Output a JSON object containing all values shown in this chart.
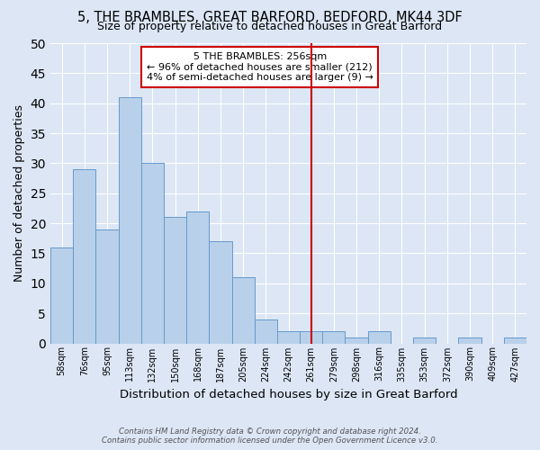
{
  "title": "5, THE BRAMBLES, GREAT BARFORD, BEDFORD, MK44 3DF",
  "subtitle": "Size of property relative to detached houses in Great Barford",
  "xlabel": "Distribution of detached houses by size in Great Barford",
  "ylabel": "Number of detached properties",
  "bin_labels": [
    "58sqm",
    "76sqm",
    "95sqm",
    "113sqm",
    "132sqm",
    "150sqm",
    "168sqm",
    "187sqm",
    "205sqm",
    "224sqm",
    "242sqm",
    "261sqm",
    "279sqm",
    "298sqm",
    "316sqm",
    "335sqm",
    "353sqm",
    "372sqm",
    "390sqm",
    "409sqm",
    "427sqm"
  ],
  "num_bins": 21,
  "bar_values": [
    16,
    29,
    19,
    41,
    30,
    21,
    22,
    17,
    11,
    4,
    2,
    2,
    2,
    1,
    2,
    0,
    1,
    0,
    1,
    0,
    1
  ],
  "bar_color": "#b8d0ea",
  "bar_edge_color": "#6699cc",
  "vline_x": 11.5,
  "vline_color": "#cc0000",
  "annotation_line1": "5 THE BRAMBLES: 256sqm",
  "annotation_line2": "← 96% of detached houses are smaller (212)",
  "annotation_line3": "4% of semi-detached houses are larger (9) →",
  "ylim": [
    0,
    50
  ],
  "yticks": [
    0,
    5,
    10,
    15,
    20,
    25,
    30,
    35,
    40,
    45,
    50
  ],
  "background_color": "#dce6f5",
  "plot_bg_color": "#dce6f5",
  "footer_line1": "Contains HM Land Registry data © Crown copyright and database right 2024.",
  "footer_line2": "Contains public sector information licensed under the Open Government Licence v3.0."
}
